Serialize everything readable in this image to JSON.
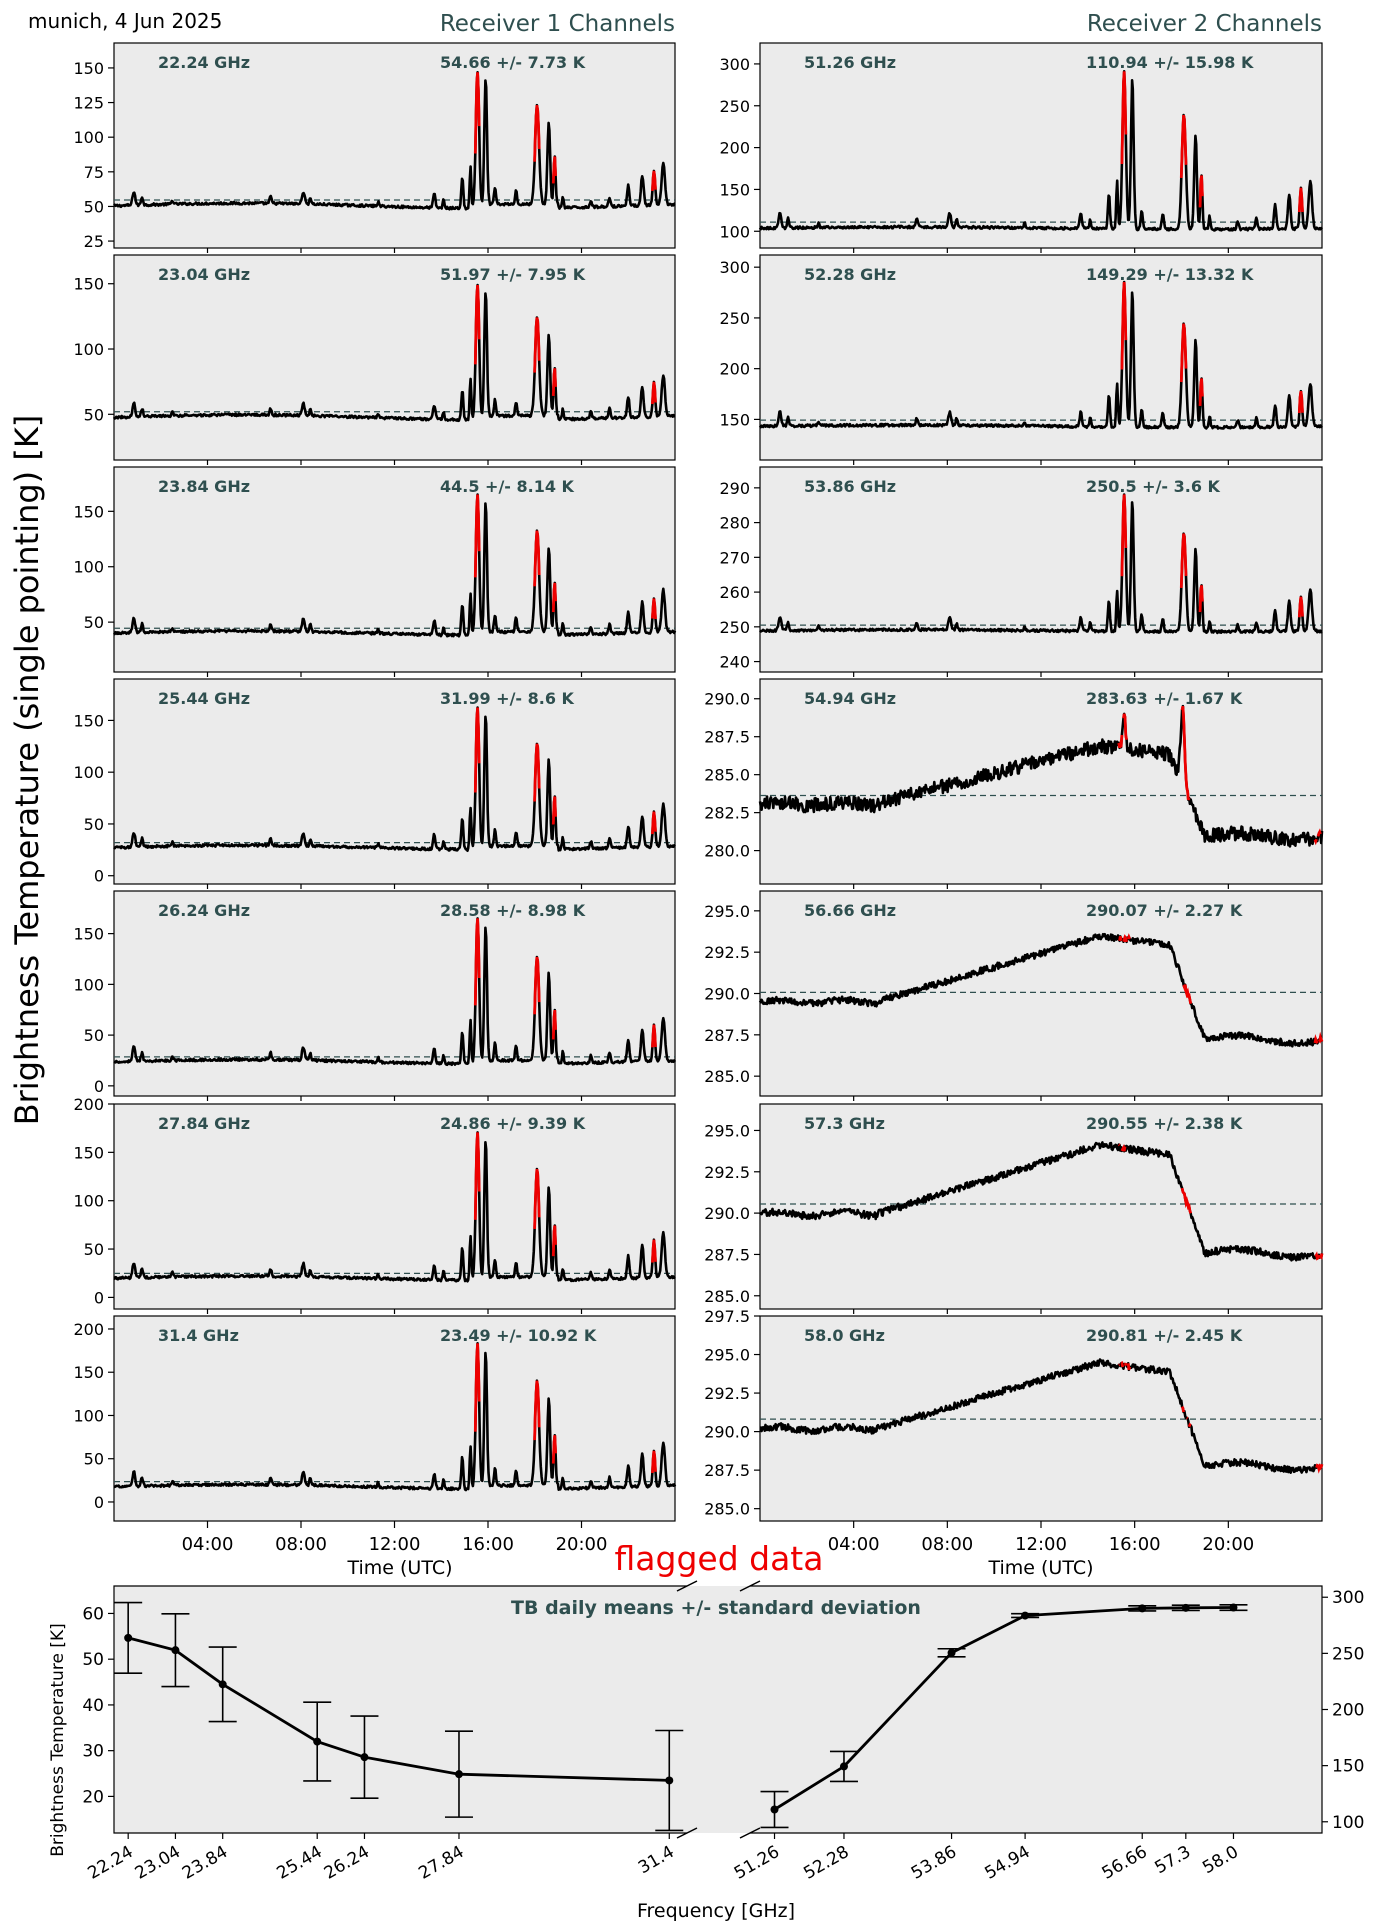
{
  "figure": {
    "site_date": "munich, 4 Jun 2025",
    "ylabel": "Brightness Temperature (single pointing) [K]",
    "flag_legend": "flagged data",
    "colors": {
      "panel_bg": "#ebebeb",
      "line": "#000000",
      "flag": "#ee0000",
      "header": "#2f4f4f",
      "mean_line": "#2f4f4f"
    }
  },
  "chart_data": [
    {
      "type": "line",
      "title": "Receiver 1 Channels",
      "xlabel": "Time (UTC)",
      "x_ticks": [
        "04:00",
        "08:00",
        "12:00",
        "16:00",
        "20:00"
      ],
      "x_range_hours": [
        0,
        24
      ],
      "series": [
        {
          "name": "22.24 GHz",
          "stats": "54.66 +/- 7.73 K",
          "mean": 54.66,
          "std": 7.73,
          "ylim": [
            20,
            168
          ],
          "yticks": [
            25,
            50,
            75,
            100,
            125,
            150
          ]
        },
        {
          "name": "23.04 GHz",
          "stats": "51.97 +/- 7.95 K",
          "mean": 51.97,
          "std": 7.95,
          "ylim": [
            15,
            172
          ],
          "yticks": [
            50,
            100,
            150
          ]
        },
        {
          "name": "23.84 GHz",
          "stats": "44.5 +/- 8.14 K",
          "mean": 44.5,
          "std": 8.14,
          "ylim": [
            5,
            190
          ],
          "yticks": [
            50,
            100,
            150
          ]
        },
        {
          "name": "25.44 GHz",
          "stats": "31.99 +/- 8.6 K",
          "mean": 31.99,
          "std": 8.6,
          "ylim": [
            -8,
            190
          ],
          "yticks": [
            0,
            50,
            100,
            150
          ]
        },
        {
          "name": "26.24 GHz",
          "stats": "28.58 +/- 8.98 K",
          "mean": 28.58,
          "std": 8.98,
          "ylim": [
            -10,
            192
          ],
          "yticks": [
            0,
            50,
            100,
            150
          ]
        },
        {
          "name": "27.84 GHz",
          "stats": "24.86 +/- 9.39 K",
          "mean": 24.86,
          "std": 9.39,
          "ylim": [
            -12,
            200
          ],
          "yticks": [
            0,
            50,
            100,
            150,
            200
          ]
        },
        {
          "name": "31.4 GHz",
          "stats": "23.49 +/- 10.92 K",
          "mean": 23.49,
          "std": 10.92,
          "ylim": [
            -22,
            215
          ],
          "yticks": [
            0,
            50,
            100,
            150,
            200
          ]
        }
      ]
    },
    {
      "type": "line",
      "title": "Receiver 2 Channels",
      "xlabel": "Time (UTC)",
      "x_ticks": [
        "04:00",
        "08:00",
        "12:00",
        "16:00",
        "20:00"
      ],
      "x_range_hours": [
        0,
        24
      ],
      "series": [
        {
          "name": "51.26 GHz",
          "stats": "110.94 +/- 15.98 K",
          "mean": 110.94,
          "std": 15.98,
          "ylim": [
            80,
            325
          ],
          "yticks": [
            100,
            150,
            200,
            250,
            300
          ]
        },
        {
          "name": "52.28 GHz",
          "stats": "149.29 +/- 13.32 K",
          "mean": 149.29,
          "std": 13.32,
          "ylim": [
            110,
            312
          ],
          "yticks": [
            150,
            200,
            250,
            300
          ]
        },
        {
          "name": "53.86 GHz",
          "stats": "250.5 +/- 3.6 K",
          "mean": 250.5,
          "std": 3.6,
          "ylim": [
            237,
            296
          ],
          "yticks": [
            240,
            250,
            260,
            270,
            280,
            290
          ]
        },
        {
          "name": "54.94 GHz",
          "stats": "283.63 +/- 1.67 K",
          "mean": 283.63,
          "std": 1.67,
          "ylim": [
            277.8,
            291.3
          ],
          "yticks": [
            280.0,
            282.5,
            285.0,
            287.5,
            290.0
          ]
        },
        {
          "name": "56.66 GHz",
          "stats": "290.07 +/- 2.27 K",
          "mean": 290.07,
          "std": 2.27,
          "ylim": [
            283.8,
            296.2
          ],
          "yticks": [
            285.0,
            287.5,
            290.0,
            292.5,
            295.0
          ]
        },
        {
          "name": "57.3 GHz",
          "stats": "290.55 +/- 2.38 K",
          "mean": 290.55,
          "std": 2.38,
          "ylim": [
            284.2,
            296.6
          ],
          "yticks": [
            285.0,
            287.5,
            290.0,
            292.5,
            295.0
          ]
        },
        {
          "name": "58.0 GHz",
          "stats": "290.81 +/- 2.45 K",
          "mean": 290.81,
          "std": 2.45,
          "ylim": [
            284.2,
            297.5
          ],
          "yticks": [
            285.0,
            287.5,
            290.0,
            292.5,
            295.0,
            297.5
          ]
        }
      ]
    },
    {
      "type": "line",
      "title": "TB daily means +/- standard deviation",
      "xlabel": "Frequency [GHz]",
      "ylabel": "Brightness Temperature [K]",
      "left": {
        "x": [
          22.24,
          23.04,
          23.84,
          25.44,
          26.24,
          27.84,
          31.4
        ],
        "y": [
          54.66,
          51.97,
          44.5,
          31.99,
          28.58,
          24.86,
          23.49
        ],
        "err": [
          7.73,
          7.95,
          8.14,
          8.6,
          8.98,
          9.39,
          10.92
        ],
        "xlim": [
          22.0,
          31.7
        ],
        "ylim": [
          12,
          66
        ],
        "yticks": [
          20,
          30,
          40,
          50,
          60
        ],
        "xticklabels": [
          "22.24",
          "23.04",
          "23.84",
          "25.44",
          "26.24",
          "27.84",
          "31.4"
        ]
      },
      "right": {
        "x": [
          51.26,
          52.28,
          53.86,
          54.94,
          56.66,
          57.3,
          58.0
        ],
        "y": [
          110.94,
          149.29,
          250.5,
          283.63,
          290.07,
          290.55,
          290.81
        ],
        "err": [
          15.98,
          13.32,
          3.6,
          1.67,
          2.27,
          2.38,
          2.45
        ],
        "xlim": [
          50.9,
          59.3
        ],
        "ylim": [
          90,
          310
        ],
        "yticks": [
          100,
          150,
          200,
          250,
          300
        ],
        "xticklabels": [
          "51.26",
          "52.28",
          "53.86",
          "54.94",
          "56.66",
          "57.3",
          "58.0"
        ]
      }
    }
  ]
}
